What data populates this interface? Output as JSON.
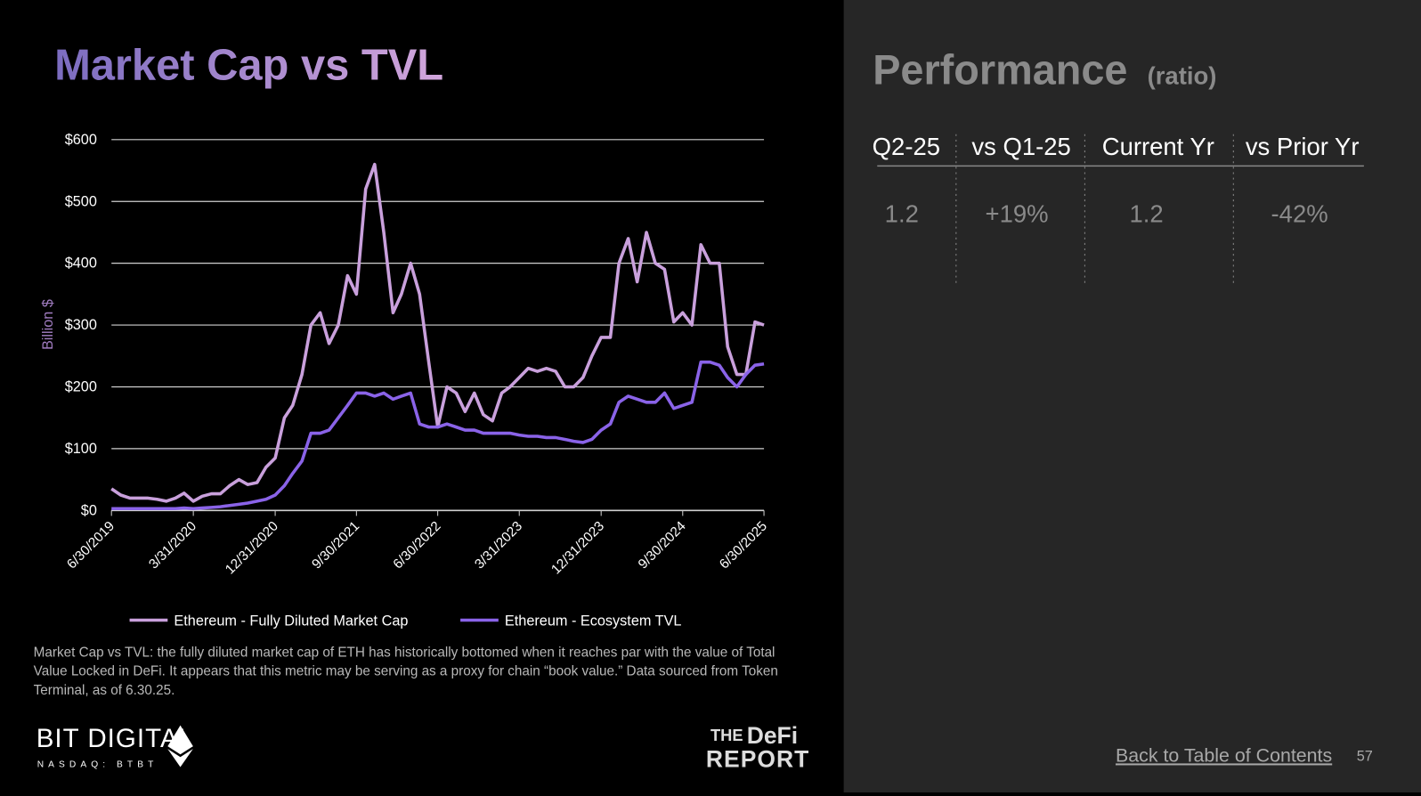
{
  "chart_data": {
    "type": "line",
    "title": "Market Cap vs TVL",
    "y_label": "Billion $",
    "x": [
      "2019-06-30",
      "2019-07-31",
      "2019-08-31",
      "2019-09-30",
      "2019-10-31",
      "2019-11-30",
      "2019-12-31",
      "2020-01-31",
      "2020-02-29",
      "2020-03-31",
      "2020-04-30",
      "2020-05-31",
      "2020-06-30",
      "2020-07-31",
      "2020-08-31",
      "2020-09-30",
      "2020-10-31",
      "2020-11-30",
      "2020-12-31",
      "2021-01-31",
      "2021-02-28",
      "2021-03-31",
      "2021-04-30",
      "2021-05-31",
      "2021-06-30",
      "2021-07-31",
      "2021-08-31",
      "2021-09-30",
      "2021-10-31",
      "2021-11-30",
      "2021-12-31",
      "2022-01-31",
      "2022-02-28",
      "2022-03-31",
      "2022-04-30",
      "2022-05-31",
      "2022-06-30",
      "2022-07-31",
      "2022-08-31",
      "2022-09-30",
      "2022-10-31",
      "2022-11-30",
      "2022-12-31",
      "2023-01-31",
      "2023-02-28",
      "2023-03-31",
      "2023-04-30",
      "2023-05-31",
      "2023-06-30",
      "2023-07-31",
      "2023-08-31",
      "2023-09-30",
      "2023-10-31",
      "2023-11-30",
      "2023-12-31",
      "2024-01-31",
      "2024-02-29",
      "2024-03-31",
      "2024-04-30",
      "2024-05-31",
      "2024-06-30",
      "2024-07-31",
      "2024-08-31",
      "2024-09-30",
      "2024-10-31",
      "2024-11-30",
      "2024-12-31",
      "2025-01-31",
      "2025-02-28",
      "2025-03-31",
      "2025-04-30",
      "2025-05-31",
      "2025-06-30"
    ],
    "series": [
      {
        "name": "Ethereum - Fully Diluted Market Cap",
        "color": "#c9a0dc",
        "values": [
          35,
          25,
          20,
          20,
          20,
          18,
          15,
          20,
          28,
          15,
          23,
          27,
          27,
          40,
          50,
          42,
          45,
          70,
          85,
          150,
          170,
          220,
          300,
          320,
          270,
          300,
          380,
          350,
          520,
          560,
          450,
          320,
          350,
          400,
          350,
          240,
          135,
          200,
          190,
          160,
          190,
          155,
          145,
          190,
          200,
          215,
          230,
          225,
          230,
          225,
          200,
          200,
          215,
          250,
          280,
          280,
          400,
          440,
          370,
          450,
          400,
          390,
          305,
          320,
          300,
          430,
          400,
          400,
          265,
          220,
          220,
          305,
          300
        ]
      },
      {
        "name": "Ethereum - Ecosystem TVL",
        "color": "#8a63e8",
        "values": [
          3,
          3,
          3,
          3,
          3,
          3,
          3,
          3,
          4,
          3,
          4,
          5,
          6,
          8,
          10,
          12,
          15,
          18,
          25,
          40,
          60,
          80,
          125,
          125,
          130,
          150,
          170,
          190,
          190,
          185,
          190,
          180,
          185,
          190,
          140,
          135,
          135,
          140,
          135,
          130,
          130,
          125,
          125,
          125,
          125,
          122,
          120,
          120,
          118,
          118,
          115,
          112,
          110,
          115,
          130,
          140,
          175,
          185,
          180,
          175,
          175,
          190,
          165,
          170,
          175,
          240,
          240,
          235,
          215,
          200,
          220,
          235,
          237
        ]
      }
    ],
    "xlim": [
      "2019-06-30",
      "2025-06-30"
    ],
    "xticks": [
      {
        "value": "2019-06-30",
        "label": "6/30/2019"
      },
      {
        "value": "2020-03-31",
        "label": "3/31/2020"
      },
      {
        "value": "2020-12-31",
        "label": "12/31/2020"
      },
      {
        "value": "2021-09-30",
        "label": "9/30/2021"
      },
      {
        "value": "2022-06-30",
        "label": "6/30/2022"
      },
      {
        "value": "2023-03-31",
        "label": "3/31/2023"
      },
      {
        "value": "2023-12-31",
        "label": "12/31/2023"
      },
      {
        "value": "2024-09-30",
        "label": "9/30/2024"
      },
      {
        "value": "2025-06-30",
        "label": "6/30/2025"
      }
    ],
    "ylim": [
      0,
      600
    ],
    "yticks": [
      {
        "value": 0,
        "label": "$0"
      },
      {
        "value": 100,
        "label": "$100"
      },
      {
        "value": 200,
        "label": "$200"
      },
      {
        "value": 300,
        "label": "$300"
      },
      {
        "value": 400,
        "label": "$400"
      },
      {
        "value": 500,
        "label": "$500"
      },
      {
        "value": 600,
        "label": "$600"
      }
    ],
    "grid": true,
    "legend": "bottom"
  },
  "footnote": "Market Cap vs TVL: the fully diluted market cap of ETH has historically bottomed when it reaches par with the value of Total Value Locked in DeFi. It appears that this metric may be serving as a proxy for chain “book value.” Data sourced from Token Terminal, as of 6.30.25.",
  "logos": {
    "bit_digital": "BIT DIGITAL",
    "nasdaq": "NASDAQ: BTBT",
    "defi_report": [
      "THE",
      "DeFi",
      "REPORT"
    ]
  },
  "performance": {
    "title": "Performance",
    "subtitle": "(ratio)",
    "headers": [
      "Q2-25",
      "vs Q1-25",
      "Current Yr",
      "vs Prior Yr"
    ],
    "values": [
      "1.2",
      "+19%",
      "1.2",
      "-42%"
    ]
  },
  "footer": {
    "link": "Back to Table of Contents",
    "page": "57"
  }
}
